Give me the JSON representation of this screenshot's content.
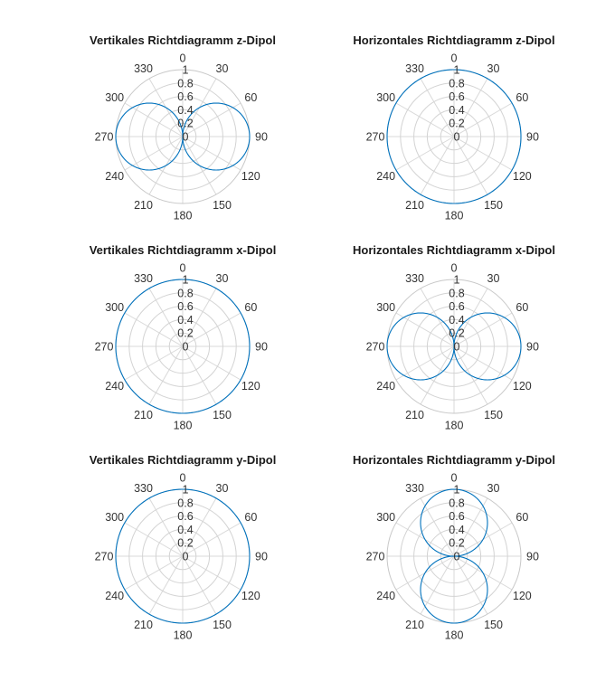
{
  "chart_data": [
    {
      "type": "polar",
      "title": "Vertikales Richtdiagramm z-Dipol",
      "theta_zero": "top",
      "theta_direction": "clockwise",
      "theta_ticks": [
        "0",
        "30",
        "60",
        "90",
        "120",
        "150",
        "180",
        "210",
        "240",
        "270",
        "300",
        "330"
      ],
      "r_ticks": [
        "0",
        "0.2",
        "0.4",
        "0.6",
        "0.8",
        "1"
      ],
      "rlim": [
        0,
        1
      ],
      "series": [
        {
          "pattern": "abs_sin",
          "theta_deg": [
            0,
            30,
            60,
            90,
            120,
            150,
            180,
            210,
            240,
            270,
            300,
            330,
            360
          ],
          "r": [
            0,
            0.5,
            0.866,
            1,
            0.866,
            0.5,
            0,
            0.5,
            0.866,
            1,
            0.866,
            0.5,
            0
          ]
        }
      ],
      "color": "#0072bd"
    },
    {
      "type": "polar",
      "title": "Horizontales Richtdiagramm z-Dipol",
      "theta_zero": "top",
      "theta_direction": "clockwise",
      "theta_ticks": [
        "0",
        "30",
        "60",
        "90",
        "120",
        "150",
        "180",
        "210",
        "240",
        "270",
        "300",
        "330"
      ],
      "r_ticks": [
        "0",
        "0.2",
        "0.4",
        "0.6",
        "0.8",
        "1"
      ],
      "rlim": [
        0,
        1
      ],
      "series": [
        {
          "pattern": "const",
          "theta_deg": [
            0,
            30,
            60,
            90,
            120,
            150,
            180,
            210,
            240,
            270,
            300,
            330,
            360
          ],
          "r": [
            1,
            1,
            1,
            1,
            1,
            1,
            1,
            1,
            1,
            1,
            1,
            1,
            1
          ]
        }
      ],
      "color": "#0072bd"
    },
    {
      "type": "polar",
      "title": "Vertikales Richtdiagramm x-Dipol",
      "theta_zero": "top",
      "theta_direction": "clockwise",
      "theta_ticks": [
        "0",
        "30",
        "60",
        "90",
        "120",
        "150",
        "180",
        "210",
        "240",
        "270",
        "300",
        "330"
      ],
      "r_ticks": [
        "0",
        "0.2",
        "0.4",
        "0.6",
        "0.8",
        "1"
      ],
      "rlim": [
        0,
        1
      ],
      "series": [
        {
          "pattern": "const",
          "theta_deg": [
            0,
            30,
            60,
            90,
            120,
            150,
            180,
            210,
            240,
            270,
            300,
            330,
            360
          ],
          "r": [
            1,
            1,
            1,
            1,
            1,
            1,
            1,
            1,
            1,
            1,
            1,
            1,
            1
          ]
        }
      ],
      "color": "#0072bd"
    },
    {
      "type": "polar",
      "title": "Horizontales Richtdiagramm x-Dipol",
      "theta_zero": "top",
      "theta_direction": "clockwise",
      "theta_ticks": [
        "0",
        "30",
        "60",
        "90",
        "120",
        "150",
        "180",
        "210",
        "240",
        "270",
        "300",
        "330"
      ],
      "r_ticks": [
        "0",
        "0.2",
        "0.4",
        "0.6",
        "0.8",
        "1"
      ],
      "rlim": [
        0,
        1
      ],
      "series": [
        {
          "pattern": "abs_sin",
          "theta_deg": [
            0,
            30,
            60,
            90,
            120,
            150,
            180,
            210,
            240,
            270,
            300,
            330,
            360
          ],
          "r": [
            0,
            0.5,
            0.866,
            1,
            0.866,
            0.5,
            0,
            0.5,
            0.866,
            1,
            0.866,
            0.5,
            0
          ]
        }
      ],
      "color": "#0072bd"
    },
    {
      "type": "polar",
      "title": "Vertikales Richtdiagramm y-Dipol",
      "theta_zero": "top",
      "theta_direction": "clockwise",
      "theta_ticks": [
        "0",
        "30",
        "60",
        "90",
        "120",
        "150",
        "180",
        "210",
        "240",
        "270",
        "300",
        "330"
      ],
      "r_ticks": [
        "0",
        "0.2",
        "0.4",
        "0.6",
        "0.8",
        "1"
      ],
      "rlim": [
        0,
        1
      ],
      "series": [
        {
          "pattern": "const",
          "theta_deg": [
            0,
            30,
            60,
            90,
            120,
            150,
            180,
            210,
            240,
            270,
            300,
            330,
            360
          ],
          "r": [
            1,
            1,
            1,
            1,
            1,
            1,
            1,
            1,
            1,
            1,
            1,
            1,
            1
          ]
        }
      ],
      "color": "#0072bd"
    },
    {
      "type": "polar",
      "title": "Horizontales Richtdiagramm y-Dipol",
      "theta_zero": "top",
      "theta_direction": "clockwise",
      "theta_ticks": [
        "0",
        "30",
        "60",
        "90",
        "120",
        "150",
        "180",
        "210",
        "240",
        "270",
        "300",
        "330"
      ],
      "r_ticks": [
        "0",
        "0.2",
        "0.4",
        "0.6",
        "0.8",
        "1"
      ],
      "rlim": [
        0,
        1
      ],
      "series": [
        {
          "pattern": "abs_cos",
          "theta_deg": [
            0,
            30,
            60,
            90,
            120,
            150,
            180,
            210,
            240,
            270,
            300,
            330,
            360
          ],
          "r": [
            1,
            0.866,
            0.5,
            0,
            0.5,
            0.866,
            1,
            0.866,
            0.5,
            0,
            0.5,
            0.866,
            1
          ]
        }
      ],
      "color": "#0072bd"
    }
  ]
}
